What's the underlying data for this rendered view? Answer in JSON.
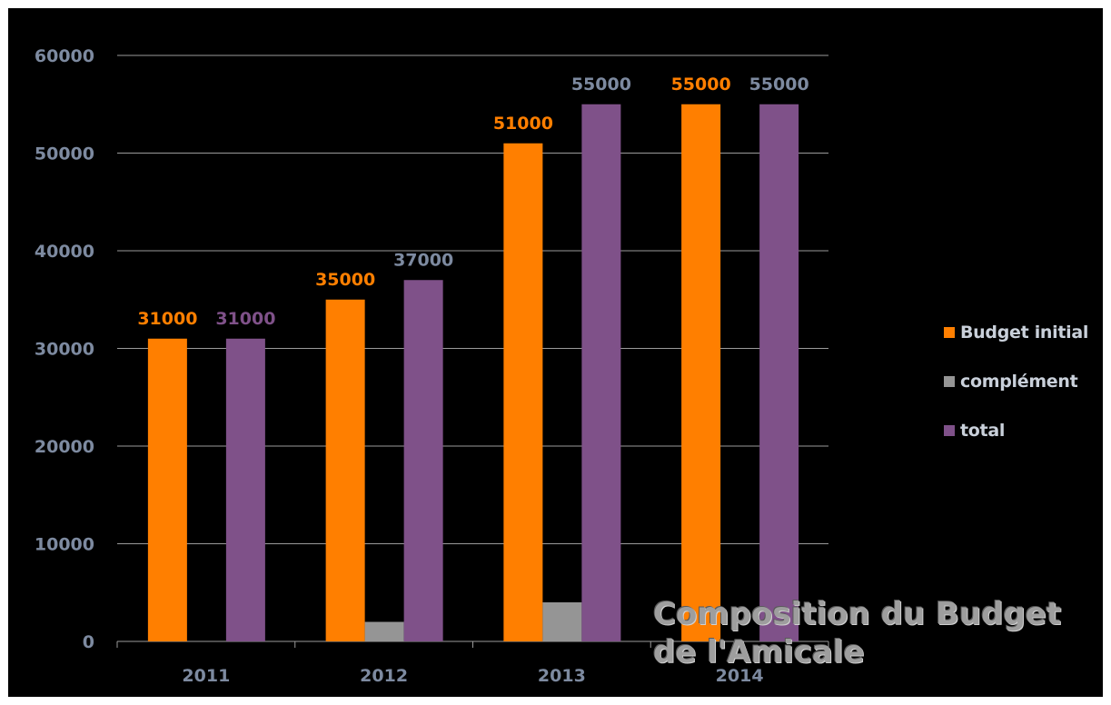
{
  "chart_data": {
    "type": "bar",
    "title_lines": [
      "Composition du Budget",
      "de l'Amicale"
    ],
    "categories": [
      "2011",
      "2012",
      "2013",
      "2014"
    ],
    "series": [
      {
        "name": "Budget initial",
        "color": "#ff7f00",
        "values": [
          31000,
          35000,
          51000,
          55000
        ],
        "labels": [
          "31000",
          "35000",
          "51000",
          "55000"
        ],
        "label_color": "#ff7f00"
      },
      {
        "name": "complément",
        "color": "#959595",
        "values": [
          0,
          2000,
          4000,
          0
        ],
        "labels": null
      },
      {
        "name": "total",
        "color": "#7f5189",
        "values": [
          31000,
          37000,
          55000,
          55000
        ],
        "labels": [
          "31000",
          "37000",
          "55000",
          "55000"
        ],
        "label_colors": [
          "#7f5189",
          "#7d8aa0",
          "#7d8aa0",
          "#7d8aa0"
        ]
      }
    ],
    "ylim": [
      0,
      60000
    ],
    "yticks": [
      "0",
      "10000",
      "20000",
      "30000",
      "40000",
      "50000",
      "60000"
    ],
    "grid": true,
    "legend_position": "right"
  },
  "colors": {
    "background": "#000000",
    "grid": "#9a9a9a",
    "axis_text": "#7d8aa0",
    "legend_text": "#c9d0da"
  }
}
